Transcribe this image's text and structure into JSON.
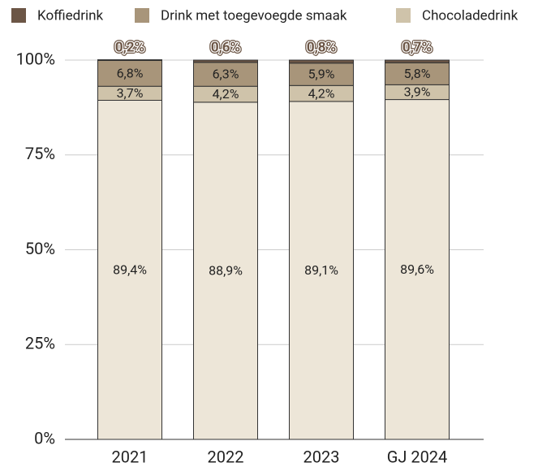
{
  "chart_data": {
    "type": "stacked-bar",
    "categories": [
      "2021",
      "2022",
      "2023",
      "GJ 2024"
    ],
    "series": [
      {
        "color": "#ede6d8",
        "values": [
          89.4,
          88.9,
          89.1,
          89.6
        ],
        "value_labels": [
          "89,4%",
          "88,9%",
          "89,1%",
          "89,6%"
        ]
      },
      {
        "name": "Chocoladedrink",
        "color": "#cfc3aa",
        "values": [
          3.7,
          4.2,
          4.2,
          3.9
        ],
        "value_labels": [
          "3,7%",
          "4,2%",
          "4,2%",
          "3,9%"
        ]
      },
      {
        "name": "Drink met toegevoegde smaak",
        "color": "#a8957a",
        "values": [
          6.8,
          6.3,
          5.9,
          5.8
        ],
        "value_labels": [
          "6,8%",
          "6,3%",
          "5,9%",
          "5,8%"
        ]
      },
      {
        "name": "Koffiedrink",
        "color": "#6c5646",
        "values": [
          0.2,
          0.6,
          0.8,
          0.7
        ],
        "value_labels": [
          "0,2%",
          "0,6%",
          "0,8%",
          "0,7%"
        ]
      }
    ],
    "ylim": [
      0,
      100
    ],
    "yticks": [
      {
        "value": 0,
        "label": "0%"
      },
      {
        "value": 25,
        "label": "25%"
      },
      {
        "value": 50,
        "label": "50%"
      },
      {
        "value": 75,
        "label": "75%"
      },
      {
        "value": 100,
        "label": "100%"
      }
    ],
    "grid": true
  }
}
